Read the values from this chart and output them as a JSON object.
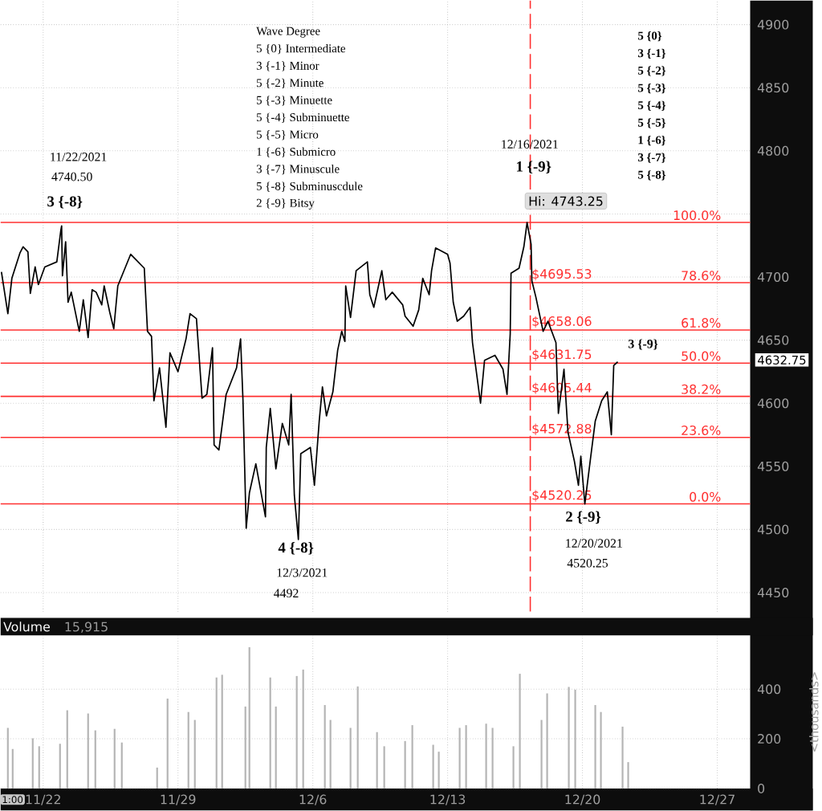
{
  "chart_data": [
    {
      "type": "line",
      "color": "#000000",
      "grid": true,
      "tick_labels": "y",
      "xlim": [
        "2021-11-19T19:00",
        "2021-12-28T17:00"
      ],
      "ylim": [
        4435,
        4919
      ],
      "xticks": [
        {
          "value": "2021-11-22",
          "label": null
        },
        {
          "value": "2021-11-29",
          "label": null
        },
        {
          "value": "2021-12-06",
          "label": null
        },
        {
          "value": "2021-12-13",
          "label": null
        },
        {
          "value": "2021-12-20",
          "label": null
        },
        {
          "value": "2021-12-27",
          "label": null
        }
      ],
      "yticks": [
        4450,
        4500,
        4550,
        4600,
        4650,
        4700,
        {
          "value": 4750,
          "label": null
        },
        4800,
        4850,
        4900
      ],
      "x": [
        "2021-11-19T20:00",
        "2021-11-20T04:00",
        "2021-11-20T09:00",
        "2021-11-20T19:00",
        "2021-11-20T23:00",
        "2021-11-21T05:00",
        "2021-11-21T08:00",
        "2021-11-21T14:00",
        "2021-11-21T18:00",
        "2021-11-22T02:00",
        "2021-11-22T17:00",
        "2021-11-22T22:00",
        "2021-11-22T23:00",
        "2021-11-23T00:00",
        "2021-11-23T04:00",
        "2021-11-23T07:00",
        "2021-11-23T11:00",
        "2021-11-23T21:00",
        "2021-11-24T02:00",
        "2021-11-24T08:00",
        "2021-11-24T13:00",
        "2021-11-24T18:00",
        "2021-11-25T01:00",
        "2021-11-25T04:00",
        "2021-11-25T11:00",
        "2021-11-25T16:00",
        "2021-11-25T21:00",
        "2021-11-26T13:00",
        "2021-11-27T06:00",
        "2021-11-27T10:00",
        "2021-11-27T15:00",
        "2021-11-27T18:00",
        "2021-11-28T01:00",
        "2021-11-28T09:00",
        "2021-11-28T14:00",
        "2021-11-29T00:00",
        "2021-11-29T10:00",
        "2021-11-29T15:00",
        "2021-11-29T23:00",
        "2021-11-30T06:00",
        "2021-11-30T12:00",
        "2021-11-30T19:00",
        "2021-11-30T21:00",
        "2021-12-01T03:00",
        "2021-12-01T12:00",
        "2021-12-02T01:00",
        "2021-12-02T06:00",
        "2021-12-02T09:00",
        "2021-12-02T13:00",
        "2021-12-02T17:00",
        "2021-12-03T01:00",
        "2021-12-03T13:00",
        "2021-12-03T14:00",
        "2021-12-03T19:00",
        "2021-12-04T02:00",
        "2021-12-04T10:00",
        "2021-12-04T18:00",
        "2021-12-04T21:00",
        "2021-12-05T01:00",
        "2021-12-05T06:00",
        "2021-12-05T09:00",
        "2021-12-05T21:00",
        "2021-12-06T02:00",
        "2021-12-06T08:00",
        "2021-12-06T12:00",
        "2021-12-06T17:00",
        "2021-12-07T01:00",
        "2021-12-07T07:00",
        "2021-12-07T12:00",
        "2021-12-07T16:00",
        "2021-12-07T17:00",
        "2021-12-07T23:00",
        "2021-12-08T06:00",
        "2021-12-08T20:00",
        "2021-12-08T23:00",
        "2021-12-09T04:00",
        "2021-12-09T14:00",
        "2021-12-09T19:00",
        "2021-12-10T03:00",
        "2021-12-10T16:00",
        "2021-12-10T19:00",
        "2021-12-11T05:00",
        "2021-12-11T12:00",
        "2021-12-11T17:00",
        "2021-12-12T01:00",
        "2021-12-12T04:00",
        "2021-12-12T09:00",
        "2021-12-13T00:00",
        "2021-12-13T03:00",
        "2021-12-13T07:00",
        "2021-12-13T12:00",
        "2021-12-13T20:00",
        "2021-12-14T04:00",
        "2021-12-14T07:00",
        "2021-12-14T17:00",
        "2021-12-14T22:00",
        "2021-12-15T11:00",
        "2021-12-15T21:00",
        "2021-12-16T02:00",
        "2021-12-16T06:00",
        "2021-12-16T07:00",
        "2021-12-16T17:00",
        "2021-12-16T23:00",
        "2021-12-17T03:00",
        "2021-12-17T08:00",
        "2021-12-17T09:00",
        "2021-12-17T14:00",
        "2021-12-17T23:00",
        "2021-12-18T05:00",
        "2021-12-18T15:00",
        "2021-12-18T18:00",
        "2021-12-19T01:00",
        "2021-12-19T06:00",
        "2021-12-19T14:00",
        "2021-12-19T19:00",
        "2021-12-19T22:00",
        "2021-12-20T03:00",
        "2021-12-20T10:00",
        "2021-12-20T16:00",
        "2021-12-21T00:00",
        "2021-12-21T07:00",
        "2021-12-21T12:00",
        "2021-12-21T15:00",
        "2021-12-21T20:00"
      ],
      "values": [
        4704,
        4671,
        4699,
        4719,
        4724,
        4720,
        4687,
        4708,
        4694,
        4708,
        4712,
        4737,
        4740.5,
        4701,
        4728,
        4680,
        4688,
        4657,
        4682,
        4652,
        4690,
        4688,
        4678,
        4693,
        4672,
        4659,
        4693,
        4718,
        4707,
        4657,
        4653,
        4602,
        4628,
        4581,
        4640,
        4625,
        4651,
        4671,
        4667,
        4604,
        4607,
        4644,
        4567,
        4563,
        4607,
        4628,
        4651,
        4602,
        4501,
        4529,
        4552,
        4510,
        4565,
        4596,
        4548,
        4584,
        4567,
        4607,
        4527,
        4492,
        4560,
        4565,
        4535,
        4586,
        4613,
        4590,
        4609,
        4642,
        4657,
        4649,
        4693,
        4668,
        4705,
        4712,
        4686,
        4676,
        4705,
        4682,
        4688,
        4678,
        4669,
        4661,
        4674,
        4699,
        4686,
        4705,
        4723,
        4718,
        4711,
        4680,
        4665,
        4669,
        4676,
        4648,
        4600,
        4634,
        4638,
        4627,
        4607,
        4655,
        4703,
        4707,
        4724,
        4743.25,
        4726,
        4697,
        4684,
        4657,
        4665,
        4648,
        4592,
        4627,
        4577,
        4554,
        4535,
        4558,
        4520.25,
        4556,
        4586,
        4602,
        4609,
        4575,
        4630,
        4632.75
      ],
      "ref_lines": [
        {
          "axis": "y",
          "value": 4743.25,
          "color": "#ff3030"
        },
        {
          "axis": "y",
          "value": 4695.53,
          "label": "$4695.53",
          "color": "#ff3030"
        },
        {
          "axis": "y",
          "value": 4658.06,
          "label": "$4658.06",
          "color": "#ff3030"
        },
        {
          "axis": "y",
          "value": 4631.75,
          "label": "$4631.75",
          "color": "#ff3030"
        },
        {
          "axis": "y",
          "value": 4605.44,
          "label": "$4605.44",
          "color": "#ff3030"
        },
        {
          "axis": "y",
          "value": 4572.88,
          "label": "$4572.88",
          "color": "#ff3030"
        },
        {
          "axis": "y",
          "value": 4520.25,
          "label": "$4520.25",
          "color": "#ff3030"
        },
        {
          "axis": "x",
          "value": "2021-12-17T07:00",
          "color": "#ff3030",
          "line_style": "dashed"
        }
      ],
      "annotations": [
        "Wave Degree",
        "5 {0}  Intermediate",
        "3 {-1}  Minor",
        "5 {-2}  Minute",
        "5 {-3}  Minuette",
        "5 {-4}  Subminuette",
        "5 {-5}  Micro",
        "1 {-6}  Submicro",
        "3 {-7}  Minuscule",
        "5 {-8}  Subminuscdule",
        "2 {-9}  Bitsy",
        "5 {0}",
        "3 {-1}",
        "5 {-2}",
        "5 {-3}",
        "5 {-4}",
        "5 {-5}",
        "1 {-6}",
        "3 {-7}",
        "5 {-8}",
        "11/22/2021",
        "4740.50",
        {
          "text": "3 {-8}",
          "x": "2021-11-22T23:00",
          "y": 4740.5
        },
        "12/16/2021",
        "1 {-9}",
        {
          "text": "Hi: 4743.25",
          "x": "2021-12-17T03:00",
          "y": 4743.25
        },
        {
          "text": "4 {-8}",
          "x": "2021-12-05T06:00",
          "y": 4492
        },
        "12/3/2021",
        "4492",
        {
          "text": "2 {-9}",
          "x": "2021-12-20T03:00",
          "y": 4520.25
        },
        "12/20/2021",
        "4520.25",
        {
          "text": "3 {-9}",
          "x": "2021-12-21T20:00",
          "y": 4632.75
        },
        "4632.75",
        "100.0%",
        "78.6%",
        "61.8%",
        "50.0%",
        "38.2%",
        "23.6%",
        "0.0%"
      ]
    },
    {
      "type": "bar",
      "title": "Volume",
      "ylabel": "<thousands>",
      "color": "#b4b4b4",
      "grid": true,
      "xlim": [
        "2021-11-19T19:00",
        "2021-12-28T17:00"
      ],
      "ylim": [
        0,
        617
      ],
      "xticks": [
        {
          "value": "2021-11-22",
          "label": "11/22"
        },
        {
          "value": "2021-11-29",
          "label": "11/29"
        },
        {
          "value": "2021-12-06",
          "label": "12/6"
        },
        {
          "value": "2021-12-13",
          "label": "12/13"
        },
        {
          "value": "2021-12-20",
          "label": "12/20"
        },
        {
          "value": "2021-12-27",
          "label": "12/27"
        }
      ],
      "yticks": [
        0,
        200,
        400
      ],
      "x": [
        "2021-11-20T04:00",
        "2021-11-20T10:00",
        "2021-11-21T11:00",
        "2021-11-21T19:00",
        "2021-11-22T21:00",
        "2021-11-23T06:00",
        "2021-11-24T08:00",
        "2021-11-24T17:00",
        "2021-11-25T17:00",
        "2021-11-26T02:00",
        "2021-11-27T22:00",
        "2021-11-28T11:00",
        "2021-11-29T13:00",
        "2021-11-29T21:00",
        "2021-12-01T00:00",
        "2021-12-01T07:00",
        "2021-12-02T12:00",
        "2021-12-02T17:00",
        "2021-12-03T19:00",
        "2021-12-04T02:00",
        "2021-12-05T04:00",
        "2021-12-05T12:00",
        "2021-12-06T15:00",
        "2021-12-06T22:00",
        "2021-12-07T23:00",
        "2021-12-08T08:00",
        "2021-12-09T08:00",
        "2021-12-09T17:00",
        "2021-12-10T19:00",
        "2021-12-11T04:00",
        "2021-12-12T06:00",
        "2021-12-12T13:00",
        "2021-12-13T15:00",
        "2021-12-13T23:00",
        "2021-12-15T00:00",
        "2021-12-15T08:00",
        "2021-12-16T10:00",
        "2021-12-16T18:00",
        "2021-12-17T21:00",
        "2021-12-18T04:00",
        "2021-12-19T07:00",
        "2021-12-19T15:00",
        "2021-12-20T16:00",
        "2021-12-20T23:00",
        "2021-12-22T02:00",
        "2021-12-22T09:00"
      ],
      "values": [
        244,
        159,
        202,
        170,
        180,
        315,
        302,
        234,
        240,
        185,
        84,
        362,
        308,
        276,
        447,
        458,
        330,
        569,
        447,
        330,
        453,
        479,
        336,
        276,
        244,
        411,
        227,
        170,
        191,
        255,
        176,
        148,
        244,
        255,
        261,
        244,
        170,
        462,
        276,
        383,
        409,
        398,
        336,
        308,
        249,
        106
      ],
      "annotations": [
        "15,915",
        "1:00"
      ]
    }
  ]
}
